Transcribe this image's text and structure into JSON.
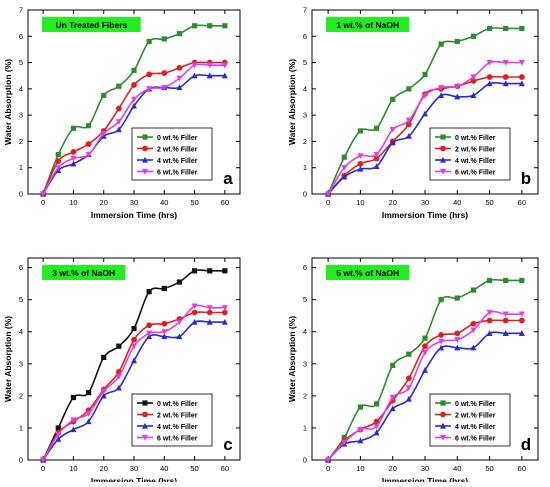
{
  "figure": {
    "xlabel": "Immersion Time (hrs)",
    "ylabel": "Water Absorption (%)"
  },
  "chart_data": [
    {
      "type": "line",
      "panel_letter": "a",
      "annotation": "Un Treated Fibers",
      "xlabel": "Immersion Time (hrs)",
      "ylabel": "Water Absorption (%)",
      "xlim": [
        -5,
        65
      ],
      "ylim": [
        0,
        7
      ],
      "xticks": [
        0,
        10,
        20,
        30,
        40,
        50,
        60
      ],
      "yticks": [
        0,
        1,
        2,
        3,
        4,
        5,
        6,
        7
      ],
      "legend_position": "bottom-right",
      "x": [
        0,
        5,
        10,
        15,
        20,
        25,
        30,
        35,
        40,
        45,
        50,
        55,
        60
      ],
      "series": [
        {
          "name": "0 wt.% Filler",
          "color": "#2e8b2e",
          "marker": "square",
          "values": [
            0,
            1.5,
            2.5,
            2.6,
            3.75,
            4.1,
            4.7,
            5.8,
            5.9,
            6.1,
            6.4,
            6.4,
            6.4
          ]
        },
        {
          "name": "2 wt.% Filler",
          "color": "#e02020",
          "marker": "circle",
          "values": [
            0,
            1.25,
            1.6,
            1.9,
            2.4,
            3.25,
            4.15,
            4.55,
            4.6,
            4.8,
            5.0,
            5.0,
            5.0
          ]
        },
        {
          "name": "4 wt.% Filler",
          "color": "#2b2bd6",
          "marker": "triangle",
          "values": [
            0,
            0.9,
            1.15,
            1.5,
            2.2,
            2.45,
            3.35,
            4.0,
            4.05,
            4.05,
            4.5,
            4.5,
            4.5
          ]
        },
        {
          "name": "6 wt.% Filler",
          "color": "#e040e0",
          "marker": "triangle-down",
          "values": [
            0,
            1.0,
            1.35,
            1.5,
            2.3,
            2.75,
            3.6,
            4.0,
            4.05,
            4.4,
            4.9,
            4.9,
            4.9
          ]
        }
      ]
    },
    {
      "type": "line",
      "panel_letter": "b",
      "annotation": "1 wt.% of NaOH",
      "xlabel": "Immersion Time (hrs)",
      "ylabel": "Water Absorption (%)",
      "xlim": [
        -5,
        65
      ],
      "ylim": [
        0,
        7
      ],
      "xticks": [
        0,
        10,
        20,
        30,
        40,
        50,
        60
      ],
      "yticks": [
        0,
        1,
        2,
        3,
        4,
        5,
        6,
        7
      ],
      "legend_position": "bottom-right",
      "x": [
        0,
        5,
        10,
        15,
        20,
        25,
        30,
        35,
        40,
        45,
        50,
        55,
        60
      ],
      "series": [
        {
          "name": "0 wt.% Filler",
          "color": "#2e8b2e",
          "marker": "square",
          "values": [
            0,
            1.4,
            2.4,
            2.5,
            3.6,
            4.0,
            4.55,
            5.7,
            5.8,
            6.0,
            6.3,
            6.3,
            6.3
          ]
        },
        {
          "name": "2 wt.% Filler",
          "color": "#e02020",
          "marker": "circle",
          "values": [
            0,
            0.7,
            1.15,
            1.35,
            2.0,
            2.65,
            3.8,
            4.0,
            4.1,
            4.3,
            4.45,
            4.45,
            4.45
          ]
        },
        {
          "name": "4 wt.% Filler",
          "color": "#2b2bd6",
          "marker": "triangle",
          "values": [
            0,
            0.65,
            0.95,
            1.05,
            1.95,
            2.2,
            3.05,
            3.75,
            3.7,
            3.75,
            4.2,
            4.2,
            4.2
          ]
        },
        {
          "name": "6 wt.% Filler",
          "color": "#e040e0",
          "marker": "triangle-down",
          "values": [
            0,
            1.0,
            1.45,
            1.5,
            2.45,
            2.8,
            3.75,
            4.05,
            4.1,
            4.45,
            5.0,
            5.0,
            5.0
          ]
        }
      ]
    },
    {
      "type": "line",
      "panel_letter": "c",
      "annotation": "3 wt.% of NaOH",
      "xlabel": "Immersion Time (hrs)",
      "ylabel": "Water Absorption (%)",
      "xlim": [
        -5,
        65
      ],
      "ylim": [
        0,
        6.3
      ],
      "xticks": [
        0,
        10,
        20,
        30,
        40,
        50,
        60
      ],
      "yticks": [
        0,
        1,
        2,
        3,
        4,
        5,
        6
      ],
      "legend_position": "bottom-right",
      "x": [
        0,
        5,
        10,
        15,
        20,
        25,
        30,
        35,
        40,
        45,
        50,
        55,
        60
      ],
      "series": [
        {
          "name": "0 wt.% Filler",
          "color": "#111111",
          "marker": "square",
          "values": [
            0,
            1.0,
            1.95,
            2.1,
            3.2,
            3.55,
            4.1,
            5.25,
            5.35,
            5.55,
            5.9,
            5.9,
            5.9
          ]
        },
        {
          "name": "2 wt.% Filler",
          "color": "#e02020",
          "marker": "circle",
          "values": [
            0,
            0.85,
            1.2,
            1.55,
            2.2,
            2.75,
            3.75,
            4.2,
            4.25,
            4.4,
            4.6,
            4.6,
            4.6
          ]
        },
        {
          "name": "4 wt.% Filler",
          "color": "#2b2bd6",
          "marker": "triangle",
          "values": [
            0,
            0.65,
            0.95,
            1.2,
            2.0,
            2.25,
            3.1,
            3.85,
            3.85,
            3.85,
            4.3,
            4.3,
            4.3
          ]
        },
        {
          "name": "6 wt.% Filler",
          "color": "#e040e0",
          "marker": "triangle-down",
          "values": [
            0,
            0.8,
            1.25,
            1.45,
            2.15,
            2.6,
            3.55,
            3.95,
            4.0,
            4.3,
            4.8,
            4.75,
            4.75
          ]
        }
      ]
    },
    {
      "type": "line",
      "panel_letter": "d",
      "annotation": "5 wt.% of NaOH",
      "xlabel": "Immersion Time (hrs)",
      "ylabel": "Water Absorption (%)",
      "xlim": [
        -5,
        65
      ],
      "ylim": [
        0,
        6.3
      ],
      "xticks": [
        0,
        10,
        20,
        30,
        40,
        50,
        60
      ],
      "yticks": [
        0,
        1,
        2,
        3,
        4,
        5,
        6
      ],
      "legend_position": "bottom-right",
      "x": [
        0,
        5,
        10,
        15,
        20,
        25,
        30,
        35,
        40,
        45,
        50,
        55,
        60
      ],
      "series": [
        {
          "name": "0 wt.% Filler",
          "color": "#2e8b2e",
          "marker": "square",
          "values": [
            0,
            0.7,
            1.65,
            1.75,
            2.95,
            3.3,
            3.8,
            5.0,
            5.05,
            5.3,
            5.6,
            5.6,
            5.6
          ]
        },
        {
          "name": "2 wt.% Filler",
          "color": "#e02020",
          "marker": "circle",
          "values": [
            0,
            0.6,
            0.95,
            1.2,
            1.85,
            2.55,
            3.55,
            3.9,
            3.95,
            4.25,
            4.35,
            4.35,
            4.35
          ]
        },
        {
          "name": "4 wt.% Filler",
          "color": "#2b2bd6",
          "marker": "triangle",
          "values": [
            0,
            0.5,
            0.6,
            0.85,
            1.6,
            1.9,
            2.8,
            3.5,
            3.5,
            3.5,
            3.95,
            3.95,
            3.95
          ]
        },
        {
          "name": "6 wt.% Filler",
          "color": "#e040e0",
          "marker": "triangle-down",
          "values": [
            0,
            0.55,
            0.95,
            1.05,
            1.95,
            2.25,
            3.35,
            3.7,
            3.75,
            4.05,
            4.6,
            4.55,
            4.55
          ]
        }
      ]
    }
  ]
}
